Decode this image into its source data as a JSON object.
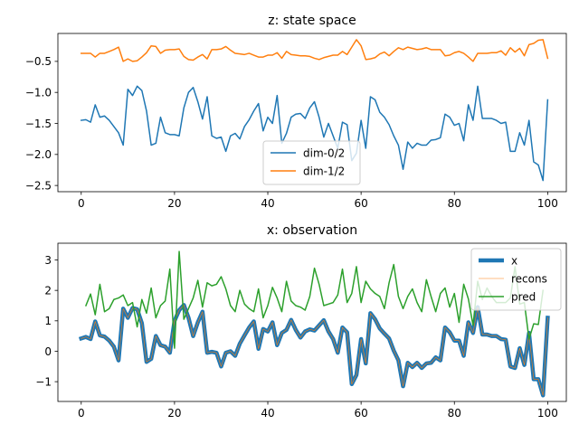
{
  "chart_data": [
    {
      "type": "line",
      "title": "z: state space",
      "xlim": [
        -5,
        104
      ],
      "ylim": [
        -2.6,
        -0.05
      ],
      "xticks": [
        0,
        20,
        40,
        60,
        80,
        100
      ],
      "yticks": [
        -2.5,
        -2.0,
        -1.5,
        -1.0,
        -0.5
      ],
      "ytick_labels": [
        "−2.5",
        "−2.0",
        "−1.5",
        "−1.0",
        "−0.5"
      ],
      "legend_position": "lower-center",
      "series": [
        {
          "name": "dim-0/2",
          "color": "#1f77b4",
          "values": [
            -1.45,
            -1.44,
            -1.48,
            -1.2,
            -1.4,
            -1.38,
            -1.45,
            -1.55,
            -1.65,
            -1.85,
            -0.95,
            -1.05,
            -0.9,
            -0.97,
            -1.3,
            -1.85,
            -1.82,
            -1.4,
            -1.65,
            -1.68,
            -1.68,
            -1.7,
            -1.25,
            -1.0,
            -0.92,
            -1.15,
            -1.43,
            -1.07,
            -1.7,
            -1.74,
            -1.72,
            -1.95,
            -1.7,
            -1.66,
            -1.75,
            -1.55,
            -1.44,
            -1.3,
            -1.18,
            -1.62,
            -1.4,
            -1.5,
            -1.05,
            -1.82,
            -1.66,
            -1.4,
            -1.35,
            -1.34,
            -1.42,
            -1.25,
            -1.15,
            -1.4,
            -1.72,
            -1.5,
            -1.7,
            -1.9,
            -1.48,
            -1.52,
            -2.1,
            -1.98,
            -1.45,
            -1.9,
            -1.07,
            -1.12,
            -1.32,
            -1.4,
            -1.52,
            -1.7,
            -1.85,
            -2.24,
            -1.8,
            -1.9,
            -1.82,
            -1.85,
            -1.85,
            -1.77,
            -1.76,
            -1.73,
            -1.35,
            -1.4,
            -1.53,
            -1.5,
            -1.78,
            -1.2,
            -1.45,
            -0.9,
            -1.42,
            -1.42,
            -1.42,
            -1.45,
            -1.5,
            -1.48,
            -1.95,
            -1.95,
            -1.65,
            -1.85,
            -1.45,
            -2.12,
            -2.17,
            -2.42,
            -1.12
          ]
        },
        {
          "name": "dim-1/2",
          "color": "#ff7f0e",
          "values": [
            -0.37,
            -0.37,
            -0.37,
            -0.43,
            -0.37,
            -0.37,
            -0.34,
            -0.31,
            -0.27,
            -0.5,
            -0.46,
            -0.5,
            -0.49,
            -0.43,
            -0.36,
            -0.25,
            -0.26,
            -0.37,
            -0.32,
            -0.31,
            -0.31,
            -0.3,
            -0.42,
            -0.47,
            -0.48,
            -0.43,
            -0.39,
            -0.46,
            -0.31,
            -0.31,
            -0.3,
            -0.26,
            -0.32,
            -0.37,
            -0.38,
            -0.39,
            -0.37,
            -0.4,
            -0.43,
            -0.43,
            -0.4,
            -0.4,
            -0.36,
            -0.45,
            -0.34,
            -0.39,
            -0.4,
            -0.41,
            -0.41,
            -0.42,
            -0.45,
            -0.47,
            -0.44,
            -0.42,
            -0.4,
            -0.4,
            -0.34,
            -0.39,
            -0.27,
            -0.15,
            -0.25,
            -0.47,
            -0.46,
            -0.44,
            -0.38,
            -0.35,
            -0.41,
            -0.34,
            -0.28,
            -0.31,
            -0.27,
            -0.29,
            -0.31,
            -0.3,
            -0.28,
            -0.31,
            -0.31,
            -0.31,
            -0.41,
            -0.4,
            -0.36,
            -0.34,
            -0.37,
            -0.43,
            -0.5,
            -0.37,
            -0.37,
            -0.37,
            -0.36,
            -0.36,
            -0.33,
            -0.4,
            -0.28,
            -0.35,
            -0.29,
            -0.41,
            -0.23,
            -0.21,
            -0.16,
            -0.15,
            -0.45
          ]
        }
      ]
    },
    {
      "type": "line",
      "title": "x: observation",
      "xlim": [
        -5,
        104
      ],
      "ylim": [
        -1.65,
        3.55
      ],
      "xticks": [
        0,
        20,
        40,
        60,
        80,
        100
      ],
      "yticks": [
        -1,
        0,
        1,
        2,
        3
      ],
      "ytick_labels": [
        "−1",
        "0",
        "1",
        "2",
        "3"
      ],
      "legend_position": "upper-right",
      "series": [
        {
          "name": "x",
          "color": "#1f77b4",
          "values": [
            0.42,
            0.47,
            0.4,
            0.98,
            0.52,
            0.48,
            0.35,
            0.15,
            -0.3,
            1.4,
            1.1,
            1.42,
            1.38,
            0.92,
            -0.35,
            -0.25,
            0.5,
            0.2,
            0.15,
            -0.05,
            1.0,
            1.35,
            1.52,
            1.1,
            0.5,
            0.95,
            1.3,
            -0.05,
            -0.02,
            -0.05,
            -0.5,
            -0.05,
            0.0,
            -0.15,
            0.25,
            0.52,
            0.78,
            0.98,
            0.08,
            0.73,
            0.65,
            0.95,
            0.2,
            0.6,
            0.7,
            1.03,
            0.7,
            0.45,
            0.65,
            0.72,
            0.68,
            0.85,
            1.02,
            0.65,
            0.4,
            -0.05,
            0.78,
            0.62,
            -1.08,
            -0.78,
            0.4,
            -0.4,
            1.25,
            1.05,
            0.75,
            0.58,
            0.42,
            0.02,
            -0.3,
            -1.15,
            -0.38,
            -0.52,
            -0.38,
            -0.55,
            -0.4,
            -0.38,
            -0.2,
            -0.3,
            0.78,
            0.62,
            0.35,
            0.35,
            -0.15,
            0.95,
            0.6,
            1.45,
            0.55,
            0.55,
            0.5,
            0.5,
            0.4,
            0.38,
            -0.5,
            -0.55,
            0.1,
            -0.45,
            0.6,
            -0.92,
            -0.92,
            -1.45,
            1.1
          ]
        },
        {
          "name": "recons",
          "color": "#ff7f0e",
          "values": [
            0.42,
            0.47,
            0.4,
            0.98,
            0.52,
            0.48,
            0.35,
            0.15,
            -0.3,
            1.4,
            1.1,
            1.42,
            1.38,
            0.92,
            -0.35,
            -0.25,
            0.5,
            0.2,
            0.15,
            -0.05,
            1.0,
            1.35,
            1.52,
            1.1,
            0.5,
            0.95,
            1.3,
            -0.05,
            -0.02,
            -0.05,
            -0.5,
            -0.05,
            0.0,
            -0.15,
            0.25,
            0.52,
            0.78,
            0.98,
            0.08,
            0.73,
            0.65,
            0.95,
            0.2,
            0.6,
            0.7,
            1.03,
            0.7,
            0.45,
            0.65,
            0.72,
            0.68,
            0.85,
            1.02,
            0.65,
            0.4,
            -0.05,
            0.78,
            0.62,
            -1.08,
            -0.78,
            0.4,
            -0.4,
            1.25,
            1.05,
            0.75,
            0.58,
            0.42,
            0.02,
            -0.3,
            -1.15,
            -0.38,
            -0.52,
            -0.38,
            -0.55,
            -0.4,
            -0.38,
            -0.2,
            -0.3,
            0.78,
            0.62,
            0.35,
            0.35,
            -0.15,
            0.95,
            0.6,
            1.45,
            0.55,
            0.55,
            0.5,
            0.5,
            0.4,
            0.38,
            -0.5,
            -0.55,
            0.1,
            -0.45,
            0.6,
            -0.92,
            -0.92,
            -1.45,
            1.1
          ]
        },
        {
          "name": "pred",
          "color": "#2ca02c",
          "values": [
            null,
            1.5,
            1.88,
            1.2,
            2.2,
            1.3,
            1.4,
            1.7,
            1.75,
            1.85,
            1.5,
            1.6,
            0.8,
            1.7,
            1.25,
            2.08,
            1.1,
            1.5,
            1.65,
            2.7,
            0.1,
            3.28,
            1.05,
            1.4,
            1.75,
            2.33,
            1.45,
            2.25,
            2.15,
            2.2,
            2.45,
            2.05,
            1.5,
            1.3,
            2.0,
            1.55,
            1.4,
            1.3,
            2.05,
            1.1,
            1.5,
            2.1,
            1.75,
            1.3,
            2.3,
            1.65,
            1.5,
            1.45,
            1.35,
            1.8,
            2.73,
            2.2,
            1.5,
            1.55,
            1.6,
            1.85,
            2.7,
            1.6,
            1.9,
            2.78,
            1.6,
            2.3,
            2.05,
            1.9,
            1.8,
            1.4,
            2.25,
            2.85,
            1.8,
            1.4,
            1.8,
            2.05,
            1.6,
            1.3,
            2.35,
            1.8,
            1.3,
            1.9,
            2.08,
            1.45,
            1.9,
            0.95,
            2.2,
            1.72,
            0.85,
            2.3,
            1.7,
            2.08,
            1.8,
            1.6,
            1.6,
            1.6,
            1.75,
            2.78,
            1.55,
            1.6,
            0.4,
            0.9,
            0.88,
            2.0,
            null
          ]
        }
      ]
    }
  ]
}
